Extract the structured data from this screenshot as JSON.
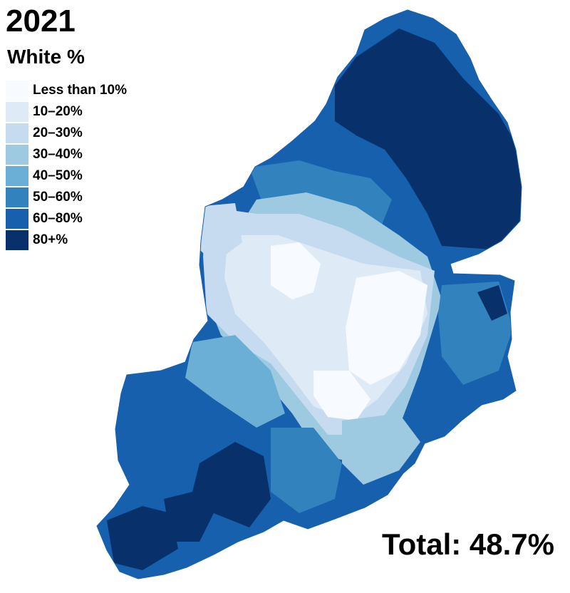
{
  "title": "2021",
  "subtitle": "White %",
  "legend": [
    {
      "label": "Less than 10%",
      "color": "#f7fbff"
    },
    {
      "label": "10–20%",
      "color": "#deebf7"
    },
    {
      "label": "20–30%",
      "color": "#c6dbef"
    },
    {
      "label": "30–40%",
      "color": "#9ecae1"
    },
    {
      "label": "40–50%",
      "color": "#6baed6"
    },
    {
      "label": "50–60%",
      "color": "#3182bd"
    },
    {
      "label": "60–80%",
      "color": "#1660ae"
    },
    {
      "label": "80+%",
      "color": "#08306b"
    }
  ],
  "total": "Total: 48.7%"
}
